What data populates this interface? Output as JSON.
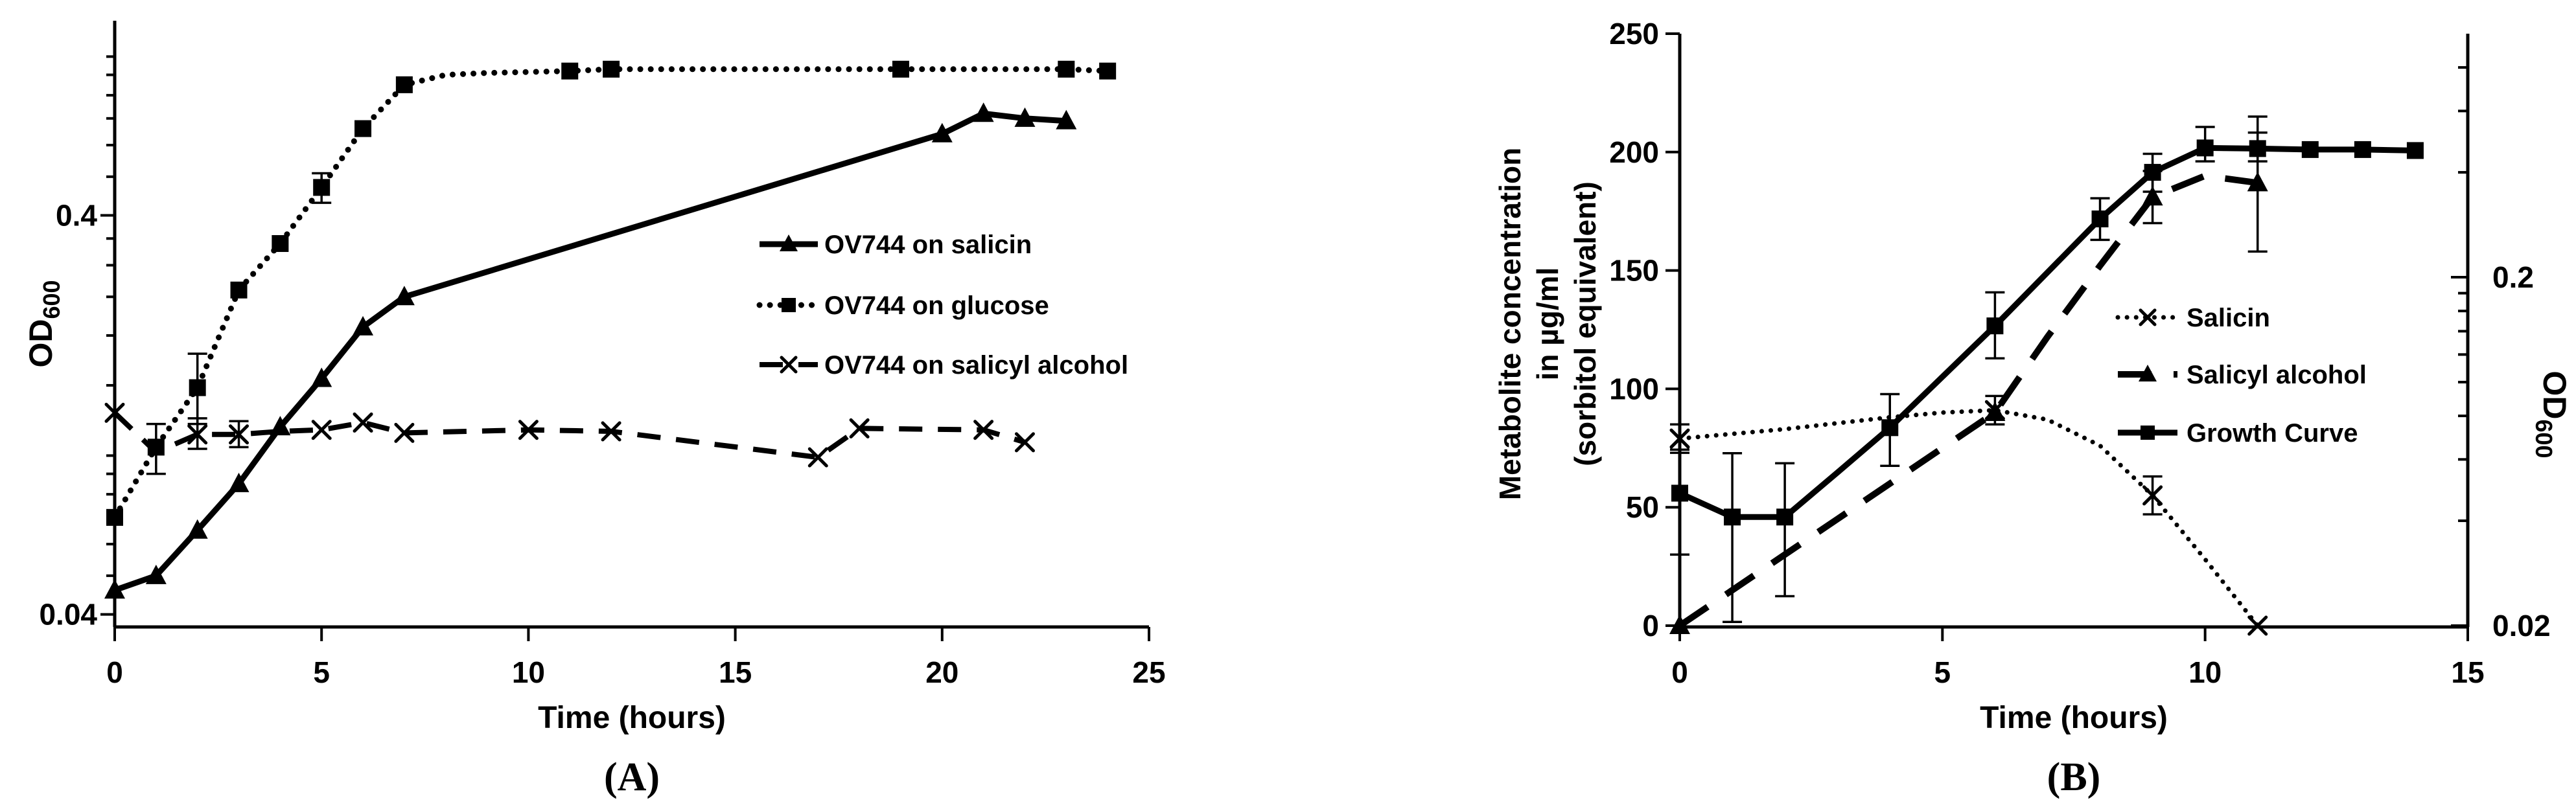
{
  "figure": {
    "background": "#ffffff",
    "ink": "#000000"
  },
  "chart_data": [
    {
      "panel_label": "(A)",
      "type": "line",
      "xlabel": "Time (hours)",
      "ylabel": "OD",
      "ylabel_sub": "600",
      "x": {
        "min": 0,
        "max": 25,
        "ticks": [
          0,
          5,
          10,
          15,
          20,
          25
        ]
      },
      "y": {
        "scale": "log",
        "min": 0.0372,
        "max": 1.23,
        "labeled_ticks": [
          0.4,
          0.04
        ],
        "tick_labels": [
          "0.4",
          "0.04"
        ],
        "minor_ticks": [
          1.0,
          0.9,
          0.8,
          0.7,
          0.6,
          0.5,
          0.35,
          0.3,
          0.25,
          0.2,
          0.15,
          0.1,
          0.09,
          0.08,
          0.07,
          0.06,
          0.05
        ]
      },
      "legend": [
        "OV744 on salicin",
        "OV744 on glucose",
        "OV744 on salicyl alcohol"
      ],
      "series": [
        {
          "name": "OV744 on salicin",
          "line": "solid",
          "marker": "triangle",
          "axis": "left",
          "points": [
            [
              0,
              0.046
            ],
            [
              1,
              0.05
            ],
            [
              2,
              0.065
            ],
            [
              3,
              0.085
            ],
            [
              4,
              0.118
            ],
            [
              5,
              0.156
            ],
            [
              6,
              0.21
            ],
            [
              7,
              0.25
            ],
            [
              20,
              0.64
            ],
            [
              21,
              0.72
            ],
            [
              22,
              0.7
            ],
            [
              23,
              0.69
            ]
          ],
          "markers_at": [
            0,
            1,
            2,
            3,
            4,
            5,
            6,
            7,
            20,
            21,
            22,
            23
          ],
          "error_bars": []
        },
        {
          "name": "OV744 on glucose",
          "line": "dotted",
          "marker": "square",
          "axis": "left",
          "points": [
            [
              0,
              0.07
            ],
            [
              1,
              0.105
            ],
            [
              2,
              0.148
            ],
            [
              3,
              0.26
            ],
            [
              4,
              0.34
            ],
            [
              5,
              0.47
            ],
            [
              6,
              0.66
            ],
            [
              7,
              0.85
            ],
            [
              8,
              0.9
            ],
            [
              9,
              0.91
            ],
            [
              11,
              0.92
            ],
            [
              12,
              0.93
            ],
            [
              19,
              0.93
            ],
            [
              23,
              0.93
            ],
            [
              24,
              0.92
            ]
          ],
          "markers_at": [
            0,
            1,
            2,
            3,
            4,
            5,
            6,
            7,
            11,
            12,
            19,
            23,
            24
          ],
          "error_bars": [
            [
              1,
              0.09,
              0.12
            ],
            [
              2,
              0.12,
              0.18
            ],
            [
              5,
              0.43,
              0.51
            ]
          ]
        },
        {
          "name": "OV744 on salicyl alcohol",
          "line": "dashed",
          "marker": "x",
          "axis": "left",
          "points": [
            [
              0,
              0.128
            ],
            [
              1,
              0.102
            ],
            [
              2,
              0.113
            ],
            [
              3,
              0.113
            ],
            [
              4,
              0.115
            ],
            [
              5,
              0.116
            ],
            [
              6,
              0.121
            ],
            [
              7,
              0.114
            ],
            [
              10,
              0.116
            ],
            [
              12,
              0.115
            ],
            [
              17,
              0.099
            ],
            [
              18,
              0.117
            ],
            [
              21,
              0.116
            ],
            [
              22,
              0.108
            ]
          ],
          "markers_at": [
            0,
            2,
            3,
            5,
            6,
            7,
            10,
            12,
            17,
            18,
            21,
            22
          ],
          "error_bars": [
            [
              2,
              0.104,
              0.124
            ],
            [
              3,
              0.105,
              0.122
            ]
          ]
        }
      ]
    },
    {
      "panel_label": "(B)",
      "type": "line",
      "xlabel": "Time (hours)",
      "ylabel_left_lines": [
        "Metabolite concentration",
        "in µg/ml",
        "(sorbitol equivalent)"
      ],
      "ylabel_right": "OD",
      "ylabel_right_sub": "600",
      "x": {
        "min": 0,
        "max": 15,
        "ticks": [
          0,
          5,
          10,
          15
        ]
      },
      "y_left": {
        "scale": "linear",
        "min": 0,
        "max": 250,
        "ticks": [
          0,
          50,
          100,
          150,
          200,
          250
        ]
      },
      "y_right": {
        "scale": "log",
        "min": 0.02,
        "max": 1.0,
        "labeled_ticks": [
          0.2,
          0.02
        ],
        "tick_labels": [
          "0.2",
          "0.02"
        ],
        "minor_ticks": [
          0.8,
          0.6,
          0.4,
          0.18,
          0.16,
          0.14,
          0.12,
          0.1,
          0.08,
          0.06,
          0.04
        ]
      },
      "legend": [
        "Salicin",
        "Salicyl alcohol",
        "Growth Curve"
      ],
      "series": [
        {
          "name": "Salicin",
          "line": "dotted",
          "marker": "x",
          "axis": "left",
          "points": [
            [
              0,
              79
            ],
            [
              1,
              81
            ],
            [
              2,
              83
            ],
            [
              3,
              85.5
            ],
            [
              4,
              88
            ],
            [
              5,
              90
            ],
            [
              6,
              91
            ],
            [
              7,
              87
            ],
            [
              8,
              76
            ],
            [
              9,
              55
            ],
            [
              10,
              28
            ],
            [
              11,
              0
            ]
          ],
          "markers_at": [
            0,
            6,
            9,
            11
          ],
          "error_bars": [
            [
              0,
              73,
              85
            ],
            [
              6,
              85,
              97
            ],
            [
              9,
              47,
              63
            ]
          ]
        },
        {
          "name": "Salicyl alcohol",
          "line": "dashed",
          "marker": "triangle",
          "axis": "left",
          "points": [
            [
              0,
              0
            ],
            [
              1,
              15
            ],
            [
              2,
              30
            ],
            [
              3,
              45
            ],
            [
              4,
              60
            ],
            [
              5,
              75
            ],
            [
              6,
              90
            ],
            [
              7,
              122
            ],
            [
              8,
              152
            ],
            [
              9,
              181
            ],
            [
              10,
              190
            ],
            [
              11,
              187
            ]
          ],
          "markers_at": [
            0,
            6,
            9,
            11
          ],
          "error_bars": [
            [
              9,
              170,
              192
            ],
            [
              11,
              158,
              215
            ]
          ]
        },
        {
          "name": "Growth Curve",
          "line": "solid",
          "marker": "square",
          "axis": "right",
          "points": [
            [
              0,
              0.048
            ],
            [
              1,
              0.041
            ],
            [
              2,
              0.041
            ],
            [
              3,
              0.055
            ],
            [
              4,
              0.074
            ],
            [
              6,
              0.145
            ],
            [
              8,
              0.294
            ],
            [
              9,
              0.4
            ],
            [
              10,
              0.47
            ],
            [
              11,
              0.468
            ],
            [
              12,
              0.465
            ],
            [
              13,
              0.465
            ],
            [
              14,
              0.462
            ]
          ],
          "markers_at": [
            0,
            1,
            2,
            4,
            6,
            8,
            9,
            10,
            11,
            12,
            13,
            14
          ],
          "error_bars": [
            [
              0,
              0.032,
              0.064
            ],
            [
              1,
              0.0205,
              0.0625
            ],
            [
              2,
              0.0243,
              0.0585
            ],
            [
              4,
              0.0575,
              0.0924
            ],
            [
              6,
              0.117,
              0.181
            ],
            [
              8,
              0.256,
              0.337
            ],
            [
              9,
              0.352,
              0.452
            ],
            [
              10,
              0.43,
              0.54
            ],
            [
              11,
              0.43,
              0.52
            ]
          ]
        }
      ]
    }
  ]
}
